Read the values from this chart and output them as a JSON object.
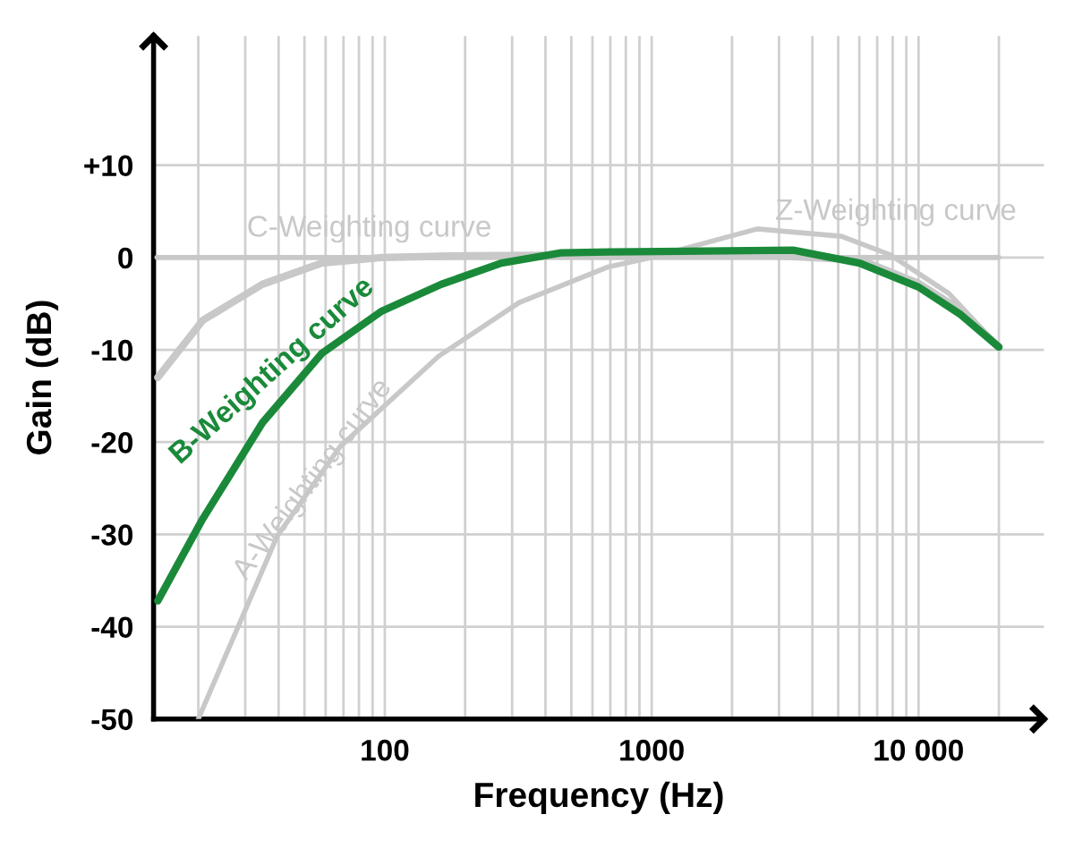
{
  "chart_data": {
    "type": "line",
    "xlabel": "Frequency (Hz)",
    "ylabel": "Gain (dB)",
    "log": "x",
    "grid": true,
    "legend": false,
    "marker": "none",
    "line_style": "solid",
    "xlim": [
      13.6,
      29500
    ],
    "ylim": [
      -50,
      24
    ],
    "xticks": [
      {
        "value": 20,
        "label": null
      },
      {
        "value": 30,
        "label": null
      },
      {
        "value": 40,
        "label": null
      },
      {
        "value": 50,
        "label": null
      },
      {
        "value": 60,
        "label": null
      },
      {
        "value": 70,
        "label": null
      },
      {
        "value": 80,
        "label": null
      },
      {
        "value": 90,
        "label": null
      },
      100,
      {
        "value": 200,
        "label": null
      },
      {
        "value": 300,
        "label": null
      },
      {
        "value": 400,
        "label": null
      },
      {
        "value": 500,
        "label": null
      },
      {
        "value": 600,
        "label": null
      },
      {
        "value": 700,
        "label": null
      },
      {
        "value": 800,
        "label": null
      },
      {
        "value": 900,
        "label": null
      },
      1000,
      {
        "value": 2000,
        "label": null
      },
      {
        "value": 3000,
        "label": null
      },
      {
        "value": 4000,
        "label": null
      },
      {
        "value": 5000,
        "label": null
      },
      {
        "value": 6000,
        "label": null
      },
      {
        "value": 7000,
        "label": null
      },
      {
        "value": 8000,
        "label": null
      },
      {
        "value": 9000,
        "label": null
      },
      {
        "value": 10000,
        "label": "10 000"
      },
      {
        "value": 20000,
        "label": null
      }
    ],
    "yticks": [
      -50,
      -40,
      -30,
      -20,
      -10,
      0,
      {
        "value": 10,
        "label": "+10"
      }
    ],
    "series": [
      {
        "name": "Z-Weighting curve",
        "color": "#c8c8c8",
        "x": [
          14,
          20000
        ],
        "values": [
          0,
          0
        ]
      },
      {
        "name": "C-Weighting curve",
        "color": "#c8c8c8",
        "x": [
          14.1,
          20.8,
          34.8,
          58,
          97,
          200,
          1000,
          2500,
          4600,
          6000,
          10000,
          14400,
          20000
        ],
        "values": [
          -13.0,
          -6.8,
          -2.9,
          -0.6,
          0,
          0.2,
          0.3,
          0.3,
          -0.1,
          -0.2,
          -2.8,
          -5.7,
          -9.7
        ]
      },
      {
        "name": "A-Weighting curve",
        "color": "#c8c8c8",
        "x": [
          20,
          28.2,
          39.5,
          67.9,
          159,
          318,
          690,
          1000,
          2490,
          5140,
          7820,
          13000,
          20000
        ],
        "values": [
          -50,
          -40.0,
          -30.2,
          -20.5,
          -10.7,
          -4.9,
          -1.0,
          0,
          3.1,
          2.3,
          0.3,
          -3.9,
          -9.7
        ]
      },
      {
        "name": "B-Weighting curve",
        "color": "#1a8a3a",
        "x": [
          14.1,
          20.8,
          34.8,
          58,
          97.5,
          163,
          273,
          457,
          690,
          3390,
          6010,
          10000,
          14400,
          20000
        ],
        "values": [
          -37.2,
          -28.3,
          -17.9,
          -10.4,
          -5.8,
          -2.9,
          -0.6,
          0.5,
          0.6,
          0.8,
          -0.6,
          -3.2,
          -6.2,
          -9.7
        ]
      }
    ]
  }
}
